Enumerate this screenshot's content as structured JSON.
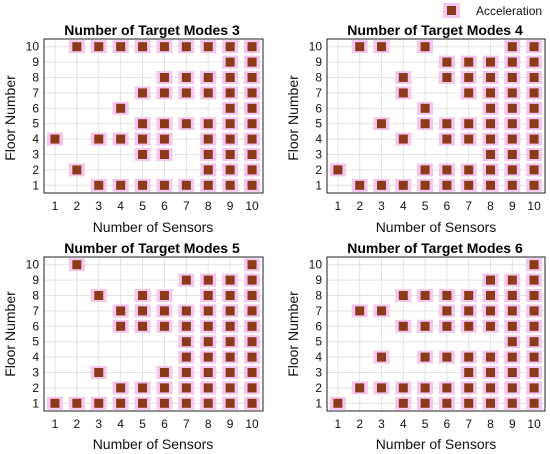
{
  "legend": {
    "label": "Acceleration",
    "color": "#8b3a1a",
    "halo_color": "#f4c6f0"
  },
  "chart_data": [
    {
      "type": "scatter",
      "title": "Number of Target Modes 3",
      "xlabel": "Number of Sensors",
      "ylabel": "Floor Number",
      "xlim": [
        0.5,
        10.5
      ],
      "ylim": [
        0.5,
        10.5
      ],
      "xticks": [
        1,
        2,
        3,
        4,
        5,
        6,
        7,
        8,
        9,
        10
      ],
      "yticks": [
        1,
        2,
        3,
        4,
        5,
        6,
        7,
        8,
        9,
        10
      ],
      "grid": true,
      "points": [
        [
          1,
          4
        ],
        [
          2,
          2
        ],
        [
          2,
          10
        ],
        [
          3,
          1
        ],
        [
          3,
          4
        ],
        [
          3,
          10
        ],
        [
          4,
          1
        ],
        [
          4,
          4
        ],
        [
          4,
          6
        ],
        [
          4,
          10
        ],
        [
          5,
          1
        ],
        [
          5,
          3
        ],
        [
          5,
          4
        ],
        [
          5,
          5
        ],
        [
          5,
          7
        ],
        [
          5,
          10
        ],
        [
          6,
          1
        ],
        [
          6,
          3
        ],
        [
          6,
          4
        ],
        [
          6,
          5
        ],
        [
          6,
          7
        ],
        [
          6,
          8
        ],
        [
          6,
          10
        ],
        [
          7,
          1
        ],
        [
          7,
          5
        ],
        [
          7,
          7
        ],
        [
          7,
          8
        ],
        [
          7,
          10
        ],
        [
          8,
          1
        ],
        [
          8,
          2
        ],
        [
          8,
          3
        ],
        [
          8,
          4
        ],
        [
          8,
          5
        ],
        [
          8,
          7
        ],
        [
          8,
          8
        ],
        [
          8,
          10
        ],
        [
          9,
          1
        ],
        [
          9,
          2
        ],
        [
          9,
          3
        ],
        [
          9,
          4
        ],
        [
          9,
          5
        ],
        [
          9,
          6
        ],
        [
          9,
          7
        ],
        [
          9,
          8
        ],
        [
          9,
          9
        ],
        [
          9,
          10
        ],
        [
          10,
          1
        ],
        [
          10,
          2
        ],
        [
          10,
          3
        ],
        [
          10,
          4
        ],
        [
          10,
          5
        ],
        [
          10,
          6
        ],
        [
          10,
          7
        ],
        [
          10,
          8
        ],
        [
          10,
          9
        ],
        [
          10,
          10
        ]
      ]
    },
    {
      "type": "scatter",
      "title": "Number of Target Modes 4",
      "xlabel": "Number of Sensors",
      "ylabel": "Floor Number",
      "xlim": [
        0.5,
        10.5
      ],
      "ylim": [
        0.5,
        10.5
      ],
      "xticks": [
        1,
        2,
        3,
        4,
        5,
        6,
        7,
        8,
        9,
        10
      ],
      "yticks": [
        1,
        2,
        3,
        4,
        5,
        6,
        7,
        8,
        9,
        10
      ],
      "grid": true,
      "points": [
        [
          1,
          2
        ],
        [
          2,
          1
        ],
        [
          2,
          10
        ],
        [
          3,
          1
        ],
        [
          3,
          5
        ],
        [
          3,
          10
        ],
        [
          4,
          1
        ],
        [
          4,
          4
        ],
        [
          4,
          7
        ],
        [
          4,
          8
        ],
        [
          5,
          1
        ],
        [
          5,
          2
        ],
        [
          5,
          5
        ],
        [
          5,
          6
        ],
        [
          5,
          10
        ],
        [
          6,
          1
        ],
        [
          6,
          2
        ],
        [
          6,
          4
        ],
        [
          6,
          5
        ],
        [
          6,
          8
        ],
        [
          6,
          9
        ],
        [
          7,
          1
        ],
        [
          7,
          2
        ],
        [
          7,
          4
        ],
        [
          7,
          5
        ],
        [
          7,
          7
        ],
        [
          7,
          8
        ],
        [
          7,
          9
        ],
        [
          8,
          1
        ],
        [
          8,
          2
        ],
        [
          8,
          3
        ],
        [
          8,
          4
        ],
        [
          8,
          5
        ],
        [
          8,
          6
        ],
        [
          8,
          7
        ],
        [
          8,
          8
        ],
        [
          8,
          9
        ],
        [
          9,
          1
        ],
        [
          9,
          2
        ],
        [
          9,
          3
        ],
        [
          9,
          4
        ],
        [
          9,
          5
        ],
        [
          9,
          6
        ],
        [
          9,
          7
        ],
        [
          9,
          8
        ],
        [
          9,
          9
        ],
        [
          9,
          10
        ],
        [
          10,
          1
        ],
        [
          10,
          2
        ],
        [
          10,
          3
        ],
        [
          10,
          4
        ],
        [
          10,
          5
        ],
        [
          10,
          6
        ],
        [
          10,
          7
        ],
        [
          10,
          8
        ],
        [
          10,
          9
        ],
        [
          10,
          10
        ]
      ]
    },
    {
      "type": "scatter",
      "title": "Number of Target Modes 5",
      "xlabel": "Number of Sensors",
      "ylabel": "Floor Number",
      "xlim": [
        0.5,
        10.5
      ],
      "ylim": [
        0.5,
        10.5
      ],
      "xticks": [
        1,
        2,
        3,
        4,
        5,
        6,
        7,
        8,
        9,
        10
      ],
      "yticks": [
        1,
        2,
        3,
        4,
        5,
        6,
        7,
        8,
        9,
        10
      ],
      "grid": true,
      "points": [
        [
          1,
          1
        ],
        [
          2,
          1
        ],
        [
          2,
          10
        ],
        [
          3,
          1
        ],
        [
          3,
          3
        ],
        [
          3,
          8
        ],
        [
          4,
          1
        ],
        [
          4,
          2
        ],
        [
          4,
          6
        ],
        [
          4,
          7
        ],
        [
          5,
          1
        ],
        [
          5,
          2
        ],
        [
          5,
          6
        ],
        [
          5,
          7
        ],
        [
          5,
          8
        ],
        [
          6,
          1
        ],
        [
          6,
          2
        ],
        [
          6,
          3
        ],
        [
          6,
          6
        ],
        [
          6,
          7
        ],
        [
          6,
          8
        ],
        [
          7,
          1
        ],
        [
          7,
          2
        ],
        [
          7,
          3
        ],
        [
          7,
          4
        ],
        [
          7,
          5
        ],
        [
          7,
          6
        ],
        [
          7,
          7
        ],
        [
          7,
          9
        ],
        [
          8,
          1
        ],
        [
          8,
          2
        ],
        [
          8,
          3
        ],
        [
          8,
          4
        ],
        [
          8,
          5
        ],
        [
          8,
          6
        ],
        [
          8,
          7
        ],
        [
          8,
          8
        ],
        [
          8,
          9
        ],
        [
          9,
          1
        ],
        [
          9,
          2
        ],
        [
          9,
          3
        ],
        [
          9,
          4
        ],
        [
          9,
          5
        ],
        [
          9,
          6
        ],
        [
          9,
          7
        ],
        [
          9,
          8
        ],
        [
          9,
          9
        ],
        [
          10,
          1
        ],
        [
          10,
          2
        ],
        [
          10,
          3
        ],
        [
          10,
          4
        ],
        [
          10,
          5
        ],
        [
          10,
          6
        ],
        [
          10,
          7
        ],
        [
          10,
          8
        ],
        [
          10,
          9
        ],
        [
          10,
          10
        ]
      ]
    },
    {
      "type": "scatter",
      "title": "Number of Target Modes 6",
      "xlabel": "Number of Sensors",
      "ylabel": "Floor Number",
      "xlim": [
        0.5,
        10.5
      ],
      "ylim": [
        0.5,
        10.5
      ],
      "xticks": [
        1,
        2,
        3,
        4,
        5,
        6,
        7,
        8,
        9,
        10
      ],
      "yticks": [
        1,
        2,
        3,
        4,
        5,
        6,
        7,
        8,
        9,
        10
      ],
      "grid": true,
      "points": [
        [
          1,
          1
        ],
        [
          2,
          2
        ],
        [
          2,
          7
        ],
        [
          3,
          2
        ],
        [
          3,
          4
        ],
        [
          3,
          7
        ],
        [
          4,
          1
        ],
        [
          4,
          2
        ],
        [
          4,
          6
        ],
        [
          4,
          8
        ],
        [
          5,
          1
        ],
        [
          5,
          2
        ],
        [
          5,
          4
        ],
        [
          5,
          6
        ],
        [
          5,
          8
        ],
        [
          6,
          1
        ],
        [
          6,
          2
        ],
        [
          6,
          4
        ],
        [
          6,
          6
        ],
        [
          6,
          7
        ],
        [
          6,
          8
        ],
        [
          7,
          1
        ],
        [
          7,
          2
        ],
        [
          7,
          3
        ],
        [
          7,
          4
        ],
        [
          7,
          6
        ],
        [
          7,
          7
        ],
        [
          7,
          8
        ],
        [
          8,
          1
        ],
        [
          8,
          2
        ],
        [
          8,
          3
        ],
        [
          8,
          4
        ],
        [
          8,
          6
        ],
        [
          8,
          7
        ],
        [
          8,
          8
        ],
        [
          8,
          9
        ],
        [
          9,
          1
        ],
        [
          9,
          2
        ],
        [
          9,
          3
        ],
        [
          9,
          4
        ],
        [
          9,
          5
        ],
        [
          9,
          6
        ],
        [
          9,
          7
        ],
        [
          9,
          8
        ],
        [
          9,
          9
        ],
        [
          10,
          1
        ],
        [
          10,
          2
        ],
        [
          10,
          3
        ],
        [
          10,
          4
        ],
        [
          10,
          5
        ],
        [
          10,
          6
        ],
        [
          10,
          7
        ],
        [
          10,
          8
        ],
        [
          10,
          9
        ],
        [
          10,
          10
        ]
      ]
    }
  ]
}
